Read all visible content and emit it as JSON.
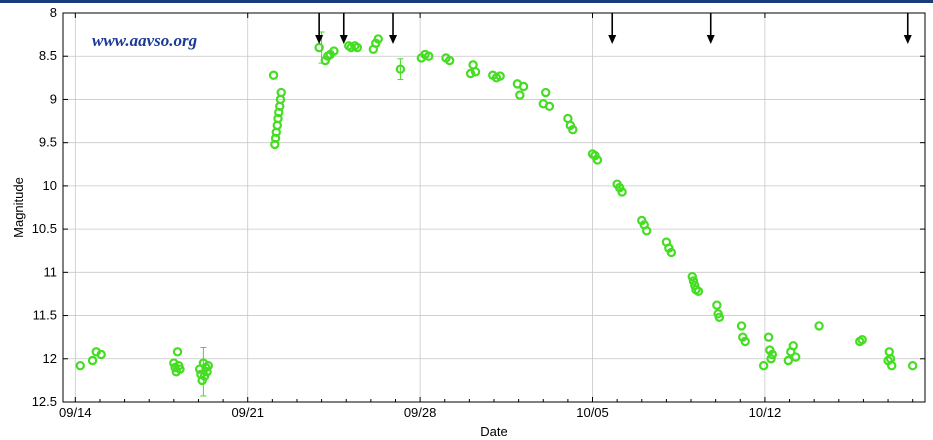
{
  "watermark": "www.aavso.org",
  "colors": {
    "points": "#44dd22",
    "axis": "#000000",
    "grid": "#c8c8c8",
    "arrows": "#000000",
    "watermark": "#1a3a9a",
    "top_rule": "#1a3a7a"
  },
  "chart_data": {
    "type": "scatter",
    "title": "",
    "xlabel": "Date",
    "ylabel": "Magnitude",
    "x_ticks": [
      "09/14",
      "09/21",
      "09/28",
      "10/05",
      "10/12"
    ],
    "x_tick_days": [
      0,
      7,
      14,
      21,
      28
    ],
    "y_ticks": [
      "8",
      "8.5",
      "9",
      "9.5",
      "10",
      "10.5",
      "11",
      "11.5",
      "12",
      "12.5"
    ],
    "xlim_days_since_0914": [
      -0.5,
      34.5
    ],
    "ylim": [
      12.5,
      8
    ],
    "y_inverted": true,
    "grid": true,
    "marker": "open-circle",
    "upper_limit_arrows_day": [
      9.9,
      10.9,
      12.9,
      21.8,
      25.8,
      33.8
    ],
    "series": [
      {
        "name": "",
        "points": [
          [
            0.2,
            12.08
          ],
          [
            0.7,
            12.02
          ],
          [
            0.85,
            11.92
          ],
          [
            1.05,
            11.95
          ],
          [
            4.0,
            12.05
          ],
          [
            4.05,
            12.1
          ],
          [
            4.1,
            12.15
          ],
          [
            4.15,
            11.92
          ],
          [
            4.2,
            12.08
          ],
          [
            4.25,
            12.12
          ],
          [
            5.05,
            12.12
          ],
          [
            5.1,
            12.18
          ],
          [
            5.15,
            12.25
          ],
          [
            5.2,
            12.05
          ],
          [
            5.25,
            12.2
          ],
          [
            5.3,
            12.1
          ],
          [
            5.35,
            12.15
          ],
          [
            5.4,
            12.08
          ],
          [
            8.05,
            8.72
          ],
          [
            8.1,
            9.52
          ],
          [
            8.13,
            9.45
          ],
          [
            8.16,
            9.38
          ],
          [
            8.2,
            9.3
          ],
          [
            8.23,
            9.22
          ],
          [
            8.26,
            9.15
          ],
          [
            8.3,
            9.08
          ],
          [
            8.33,
            9.0
          ],
          [
            8.36,
            8.92
          ],
          [
            9.9,
            8.4
          ],
          [
            10.15,
            8.55
          ],
          [
            10.25,
            8.5
          ],
          [
            10.35,
            8.48
          ],
          [
            10.5,
            8.44
          ],
          [
            11.1,
            8.38
          ],
          [
            11.2,
            8.4
          ],
          [
            11.35,
            8.38
          ],
          [
            11.45,
            8.4
          ],
          [
            12.1,
            8.42
          ],
          [
            12.2,
            8.35
          ],
          [
            12.3,
            8.3
          ],
          [
            13.2,
            8.65
          ],
          [
            14.05,
            8.52
          ],
          [
            14.2,
            8.48
          ],
          [
            14.35,
            8.5
          ],
          [
            15.05,
            8.52
          ],
          [
            15.2,
            8.55
          ],
          [
            16.05,
            8.7
          ],
          [
            16.15,
            8.6
          ],
          [
            16.25,
            8.68
          ],
          [
            16.95,
            8.72
          ],
          [
            17.1,
            8.75
          ],
          [
            17.25,
            8.73
          ],
          [
            17.95,
            8.82
          ],
          [
            18.05,
            8.95
          ],
          [
            18.2,
            8.85
          ],
          [
            19.0,
            9.05
          ],
          [
            19.1,
            8.92
          ],
          [
            19.25,
            9.08
          ],
          [
            20.0,
            9.22
          ],
          [
            20.1,
            9.3
          ],
          [
            20.2,
            9.35
          ],
          [
            21.0,
            9.63
          ],
          [
            21.1,
            9.65
          ],
          [
            21.2,
            9.7
          ],
          [
            22.0,
            9.98
          ],
          [
            22.1,
            10.02
          ],
          [
            22.2,
            10.07
          ],
          [
            23.0,
            10.4
          ],
          [
            23.1,
            10.45
          ],
          [
            23.2,
            10.52
          ],
          [
            24.0,
            10.65
          ],
          [
            24.1,
            10.72
          ],
          [
            24.2,
            10.77
          ],
          [
            25.05,
            11.05
          ],
          [
            25.1,
            11.1
          ],
          [
            25.15,
            11.15
          ],
          [
            25.2,
            11.2
          ],
          [
            25.3,
            11.22
          ],
          [
            26.05,
            11.38
          ],
          [
            26.1,
            11.48
          ],
          [
            26.15,
            11.52
          ],
          [
            27.05,
            11.62
          ],
          [
            27.1,
            11.75
          ],
          [
            27.2,
            11.8
          ],
          [
            27.95,
            12.08
          ],
          [
            28.15,
            11.75
          ],
          [
            28.2,
            11.9
          ],
          [
            28.25,
            12.0
          ],
          [
            28.3,
            11.95
          ],
          [
            28.95,
            12.02
          ],
          [
            29.05,
            11.92
          ],
          [
            29.15,
            11.85
          ],
          [
            29.25,
            11.98
          ],
          [
            30.2,
            11.62
          ],
          [
            31.85,
            11.8
          ],
          [
            31.95,
            11.78
          ],
          [
            33.0,
            12.02
          ],
          [
            33.05,
            11.92
          ],
          [
            33.1,
            12.0
          ],
          [
            33.15,
            12.08
          ],
          [
            34.0,
            12.08
          ]
        ]
      }
    ]
  }
}
